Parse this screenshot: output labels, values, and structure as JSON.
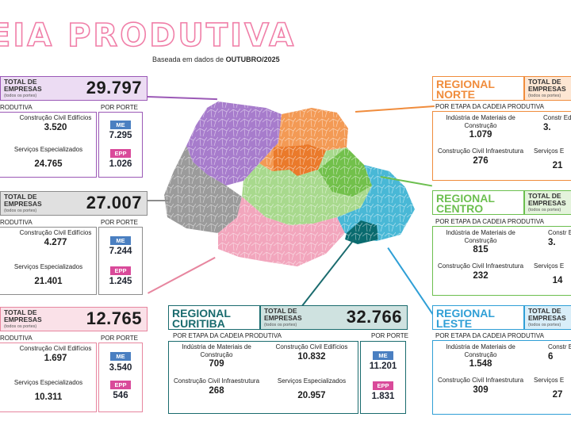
{
  "header": {
    "title": "EIA PRODUTIVA",
    "subtitle_prefix": "Baseada em dados de ",
    "subtitle_bold": "OUTUBRO/2025"
  },
  "labels": {
    "total": "TOTAL DE EMPRESAS",
    "total_sub": "(todos os portes)",
    "etapa_full": "POR ETAPA DA CADEIA PRODUTIVA",
    "etapa_clip": "RODUTIVA",
    "por_porte": "POR PORTE",
    "industria": "Indústria de Materiais de Construção",
    "civil_edificios": "Construção Civil Edifícios",
    "civil_infra": "Construção Civil Infraestrutura",
    "servicos": "Serviços Especializados",
    "me": "ME",
    "epp": "EPP",
    "clip_edif": "Constr Edi",
    "clip_serv": "Serviços E"
  },
  "colors": {
    "title": "#f07fa8",
    "me": "#4a7fc1",
    "epp": "#d94a9a"
  },
  "regions": {
    "left_top": {
      "total": "29.797",
      "civil_edificios": "3.520",
      "servicos": "24.765",
      "me": "7.295",
      "epp": "1.026",
      "color": "#9b59b6",
      "bg": "#ecdcf3"
    },
    "left_mid": {
      "total": "27.007",
      "civil_edificios": "4.277",
      "servicos": "21.401",
      "me": "7.244",
      "epp": "1.245",
      "color": "#8d8d8d",
      "bg": "#e0e0e0"
    },
    "left_bot": {
      "total": "12.765",
      "civil_edificios": "1.697",
      "servicos": "10.311",
      "me": "3.540",
      "epp": "546",
      "color": "#e7869f",
      "bg": "#fae1e8"
    },
    "curitiba": {
      "name": "REGIONAL CURITIBA",
      "total": "32.766",
      "industria": "709",
      "civil_edificios": "10.832",
      "civil_infra": "268",
      "servicos": "20.957",
      "me": "11.201",
      "epp": "1.831",
      "color": "#1a6b6e",
      "bg": "#cfe2e0"
    },
    "norte": {
      "name": "REGIONAL NORTE",
      "industria": "1.079",
      "civil_edificios": "3.",
      "civil_infra": "276",
      "servicos": "21",
      "color": "#f08c3c",
      "bg": "#fde6d3"
    },
    "centro": {
      "name": "REGIONAL CENTRO",
      "industria": "815",
      "civil_edificios": "3.",
      "civil_infra": "232",
      "servicos": "14",
      "color": "#6cbf4f",
      "bg": "#e4f3dc"
    },
    "leste": {
      "name": "REGIONAL LESTE",
      "industria": "1.548",
      "civil_edificios": "6",
      "civil_infra": "309",
      "servicos": "27",
      "color": "#2f9fd6",
      "bg": "#d9eef9"
    }
  }
}
